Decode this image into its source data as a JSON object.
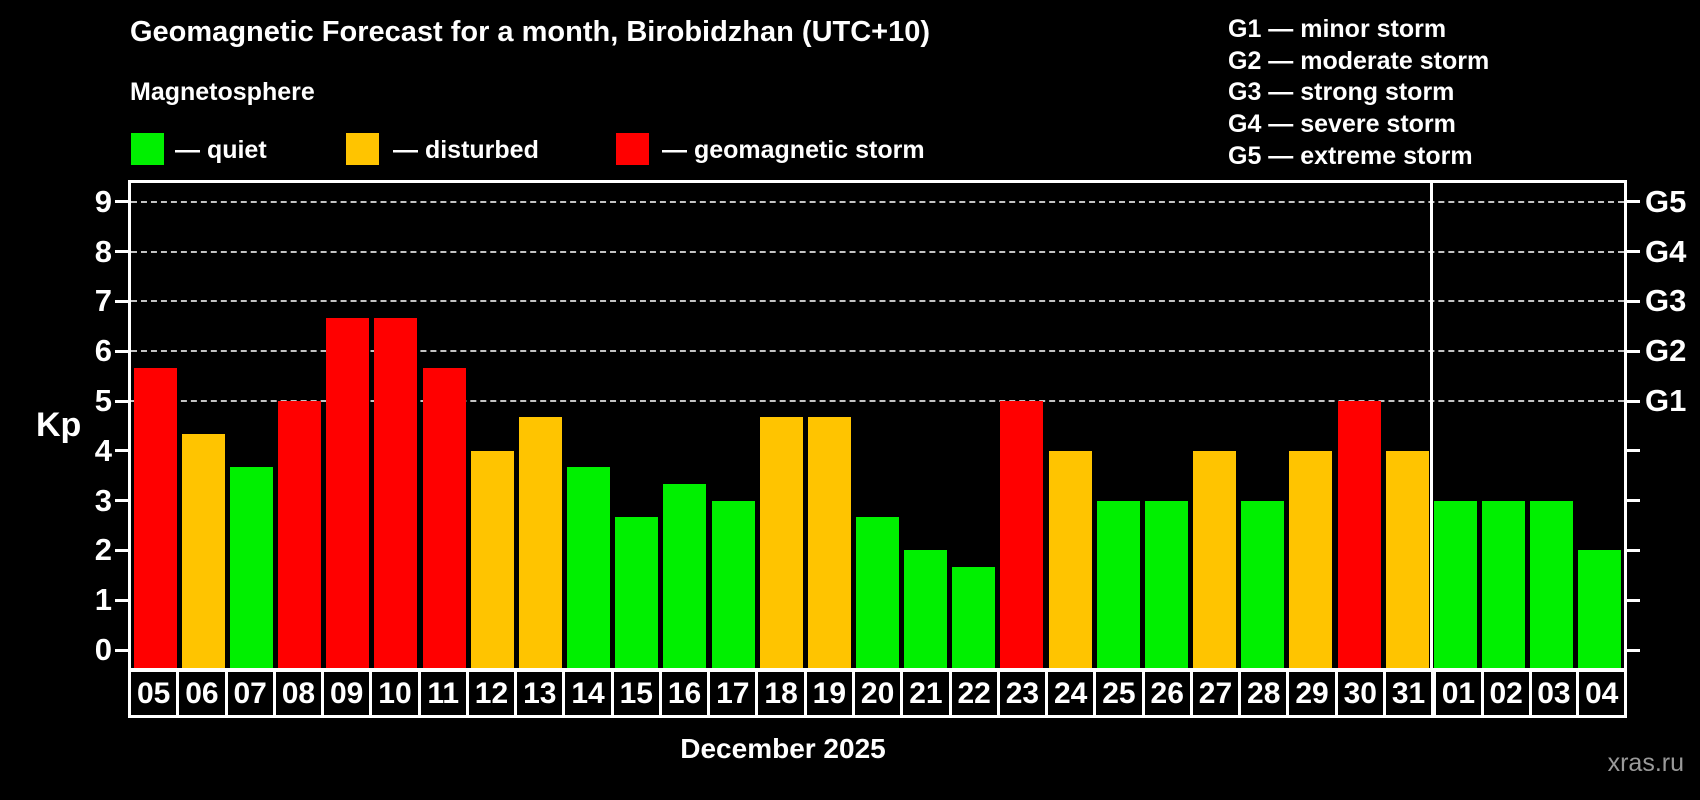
{
  "title": "Geomagnetic Forecast for a month, Birobidzhan (UTC+10)",
  "subtitle": "Magnetosphere",
  "legend": {
    "items": [
      {
        "name": "quiet",
        "label": "— quiet",
        "color": "#00f000"
      },
      {
        "name": "disturbed",
        "label": "— disturbed",
        "color": "#ffc400"
      },
      {
        "name": "storm",
        "label": "— geomagnetic storm",
        "color": "#ff0000"
      }
    ]
  },
  "g_legend": [
    "G1 — minor storm",
    "G2 — moderate storm",
    "G3 — strong storm",
    "G4 — severe storm",
    "G5 — extreme storm"
  ],
  "y_axis": {
    "label": "Kp",
    "ticks": [
      0,
      1,
      2,
      3,
      4,
      5,
      6,
      7,
      8,
      9
    ]
  },
  "right_axis": {
    "levels": [
      {
        "label": "G1",
        "kp": 5
      },
      {
        "label": "G2",
        "kp": 6
      },
      {
        "label": "G3",
        "kp": 7
      },
      {
        "label": "G4",
        "kp": 8
      },
      {
        "label": "G5",
        "kp": 9
      }
    ]
  },
  "x_axis": {
    "month_label": "December 2025"
  },
  "watermark": "xras.ru",
  "chart_data": {
    "type": "bar",
    "title": "Geomagnetic Forecast for a month, Birobidzhan (UTC+10)",
    "xlabel": "December 2025",
    "ylabel": "Kp",
    "ylim": [
      0,
      9.4
    ],
    "grid_kp": [
      5,
      6,
      7,
      8,
      9
    ],
    "legend_position": "top",
    "month_split_index": 27,
    "days": [
      {
        "day": "05",
        "kp": 5.67,
        "status": "storm"
      },
      {
        "day": "06",
        "kp": 4.33,
        "status": "disturbed"
      },
      {
        "day": "07",
        "kp": 3.67,
        "status": "quiet"
      },
      {
        "day": "08",
        "kp": 5.0,
        "status": "storm"
      },
      {
        "day": "09",
        "kp": 6.67,
        "status": "storm"
      },
      {
        "day": "10",
        "kp": 6.67,
        "status": "storm"
      },
      {
        "day": "11",
        "kp": 5.67,
        "status": "storm"
      },
      {
        "day": "12",
        "kp": 4.0,
        "status": "disturbed"
      },
      {
        "day": "13",
        "kp": 4.67,
        "status": "disturbed"
      },
      {
        "day": "14",
        "kp": 3.67,
        "status": "quiet"
      },
      {
        "day": "15",
        "kp": 2.67,
        "status": "quiet"
      },
      {
        "day": "16",
        "kp": 3.33,
        "status": "quiet"
      },
      {
        "day": "17",
        "kp": 3.0,
        "status": "quiet"
      },
      {
        "day": "18",
        "kp": 4.67,
        "status": "disturbed"
      },
      {
        "day": "19",
        "kp": 4.67,
        "status": "disturbed"
      },
      {
        "day": "20",
        "kp": 2.67,
        "status": "quiet"
      },
      {
        "day": "21",
        "kp": 2.0,
        "status": "quiet"
      },
      {
        "day": "22",
        "kp": 1.67,
        "status": "quiet"
      },
      {
        "day": "23",
        "kp": 5.0,
        "status": "storm"
      },
      {
        "day": "24",
        "kp": 4.0,
        "status": "disturbed"
      },
      {
        "day": "25",
        "kp": 3.0,
        "status": "quiet"
      },
      {
        "day": "26",
        "kp": 3.0,
        "status": "quiet"
      },
      {
        "day": "27",
        "kp": 4.0,
        "status": "disturbed"
      },
      {
        "day": "28",
        "kp": 3.0,
        "status": "quiet"
      },
      {
        "day": "29",
        "kp": 4.0,
        "status": "disturbed"
      },
      {
        "day": "30",
        "kp": 5.0,
        "status": "storm"
      },
      {
        "day": "31",
        "kp": 4.0,
        "status": "disturbed"
      },
      {
        "day": "01",
        "kp": 3.0,
        "status": "quiet"
      },
      {
        "day": "02",
        "kp": 3.0,
        "status": "quiet"
      },
      {
        "day": "03",
        "kp": 3.0,
        "status": "quiet"
      },
      {
        "day": "04",
        "kp": 2.0,
        "status": "quiet"
      }
    ]
  }
}
